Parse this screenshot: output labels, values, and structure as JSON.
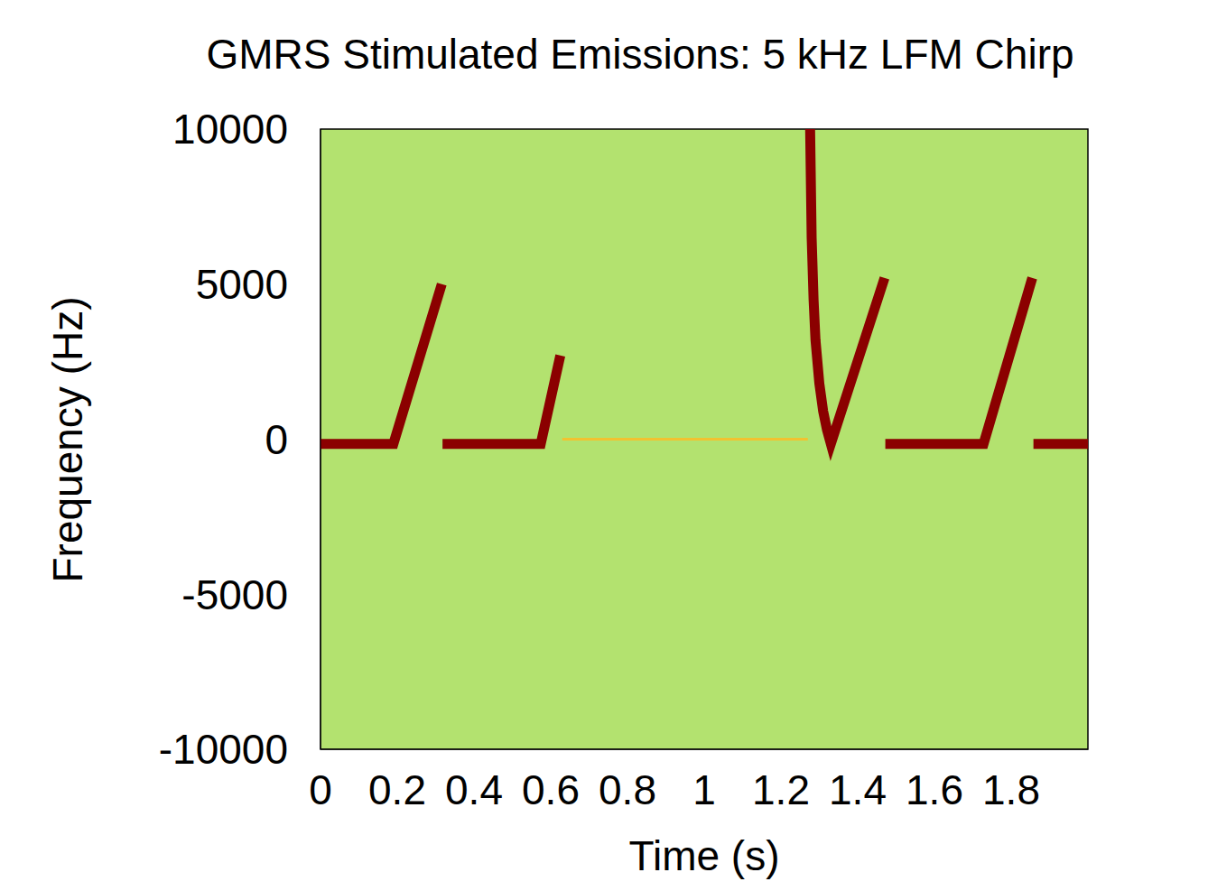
{
  "chart_data": {
    "type": "line",
    "title": "GMRS Stimulated Emissions: 5 kHz LFM Chirp",
    "xlabel": "Time (s)",
    "ylabel": "Frequency (Hz)",
    "xlim": [
      0,
      2
    ],
    "xticks": [
      0,
      0.2,
      0.4,
      0.6,
      0.8,
      1,
      1.2,
      1.4,
      1.6,
      1.8
    ],
    "ylim": [
      -10000,
      10000
    ],
    "yticks": [
      -10000,
      -5000,
      0,
      5000,
      10000
    ],
    "grid": false,
    "series": [
      {
        "color": "#f2c230",
        "x": [
          0.63,
          1.27
        ],
        "values": [
          0,
          0
        ]
      },
      {
        "color": "#8b0000",
        "x": [
          0,
          0.19,
          0.316,
          0.317,
          0.318,
          0.574,
          0.625,
          0.7,
          1.276,
          1.28,
          1.285,
          1.29,
          1.3,
          1.31,
          1.32,
          1.33,
          1.47,
          1.471,
          1.472,
          1.728,
          1.855,
          1.857,
          1.858,
          2
        ],
        "values": [
          -150,
          -150,
          5000,
          null,
          -150,
          -150,
          2700,
          null,
          10000,
          6500,
          4500,
          3200,
          1800,
          900,
          300,
          -150,
          5200,
          null,
          -150,
          -150,
          5200,
          null,
          -150,
          -150
        ]
      }
    ]
  }
}
